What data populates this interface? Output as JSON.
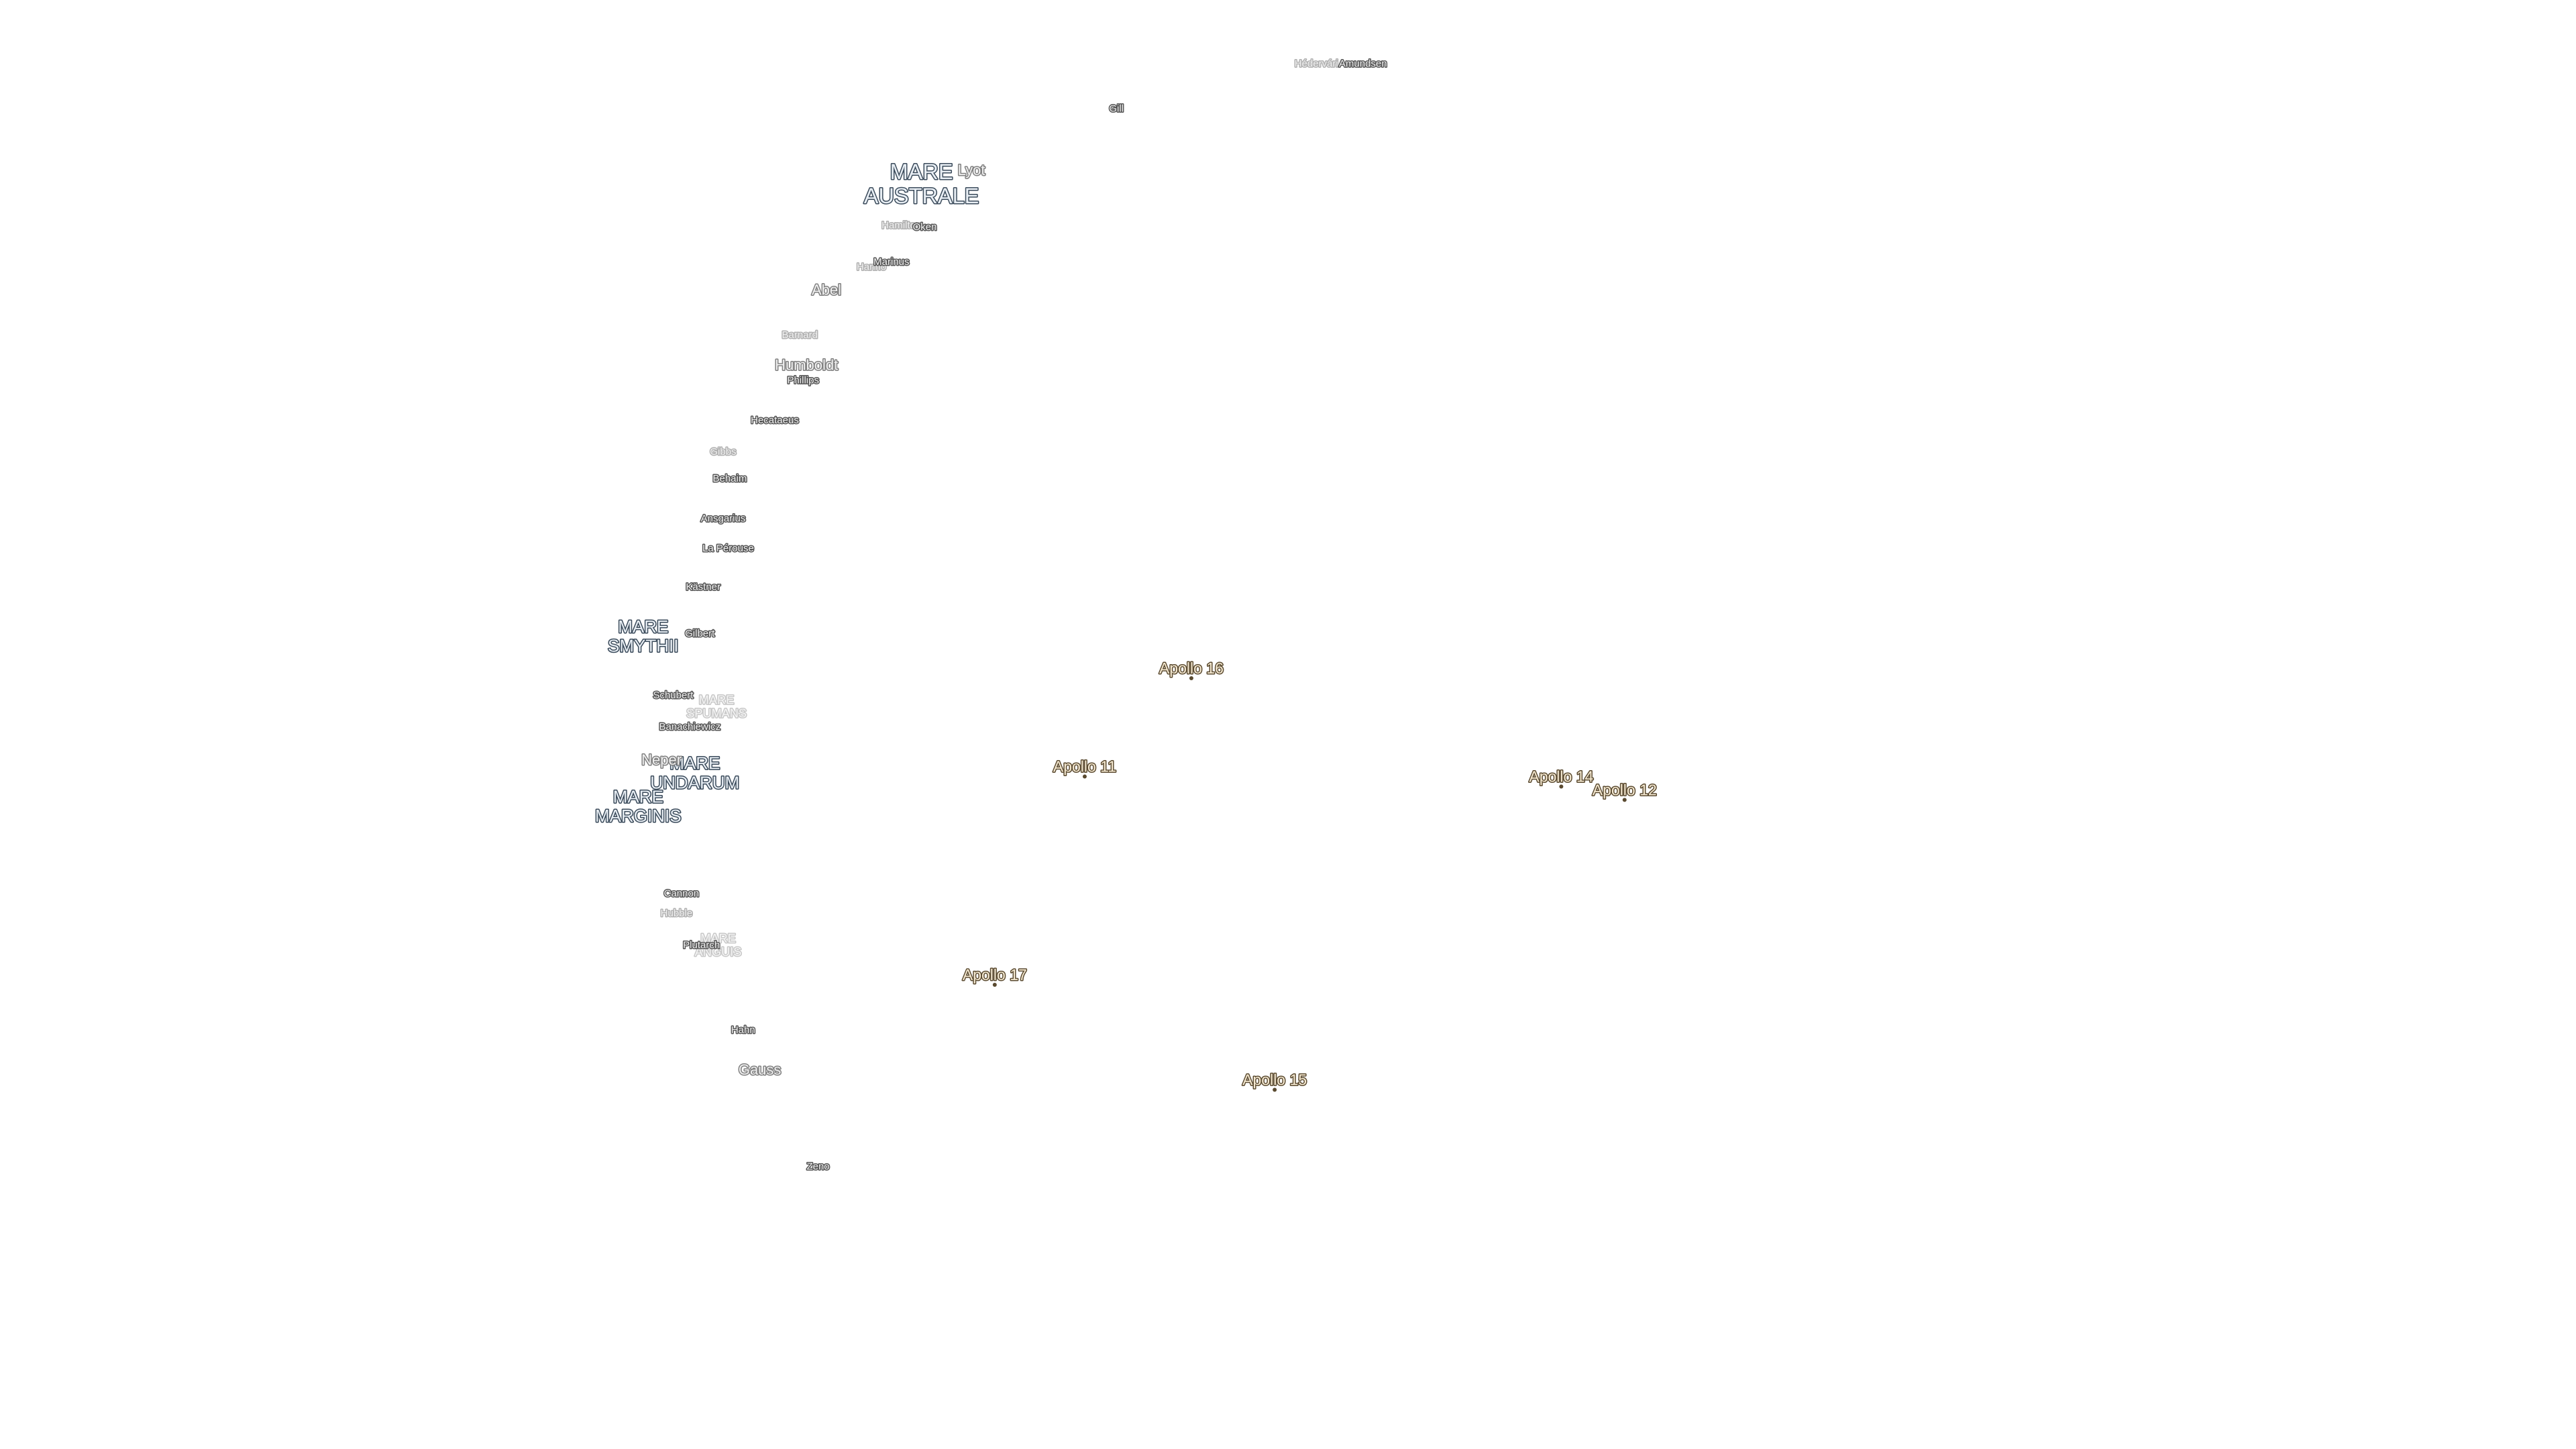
{
  "maria": [
    {
      "lines": [
        "MARE",
        "AUSTRALE"
      ]
    },
    {
      "lines": [
        "MARE",
        "SMYTHII"
      ]
    },
    {
      "lines": [
        "MARE",
        "SPUMANS"
      ]
    },
    {
      "lines": [
        "MARE",
        "UNDARUM"
      ]
    },
    {
      "lines": [
        "MARE",
        "MARGINIS"
      ]
    },
    {
      "lines": [
        "MARE",
        "ANGUIS"
      ]
    }
  ],
  "craters": [
    "Hédervári",
    "Amundsen",
    "Gill",
    "Lyot",
    "Hamilton",
    "Oken",
    "Hanno",
    "Marinus",
    "Abel",
    "Barnard",
    "Humboldt",
    "Phillips",
    "Hecataeus",
    "Gibbs",
    "Behaim",
    "Ansgarius",
    "La Pérouse",
    "Kästner",
    "Gilbert",
    "Schubert",
    "Banachiewicz",
    "Neper",
    "Cannon",
    "Hubble",
    "Plutarch",
    "Hahn",
    "Gauss",
    "Zeno"
  ],
  "landing_sites": [
    "Apollo 16",
    "Apollo 11",
    "Apollo 14",
    "Apollo 12",
    "Apollo 17",
    "Apollo 15"
  ]
}
